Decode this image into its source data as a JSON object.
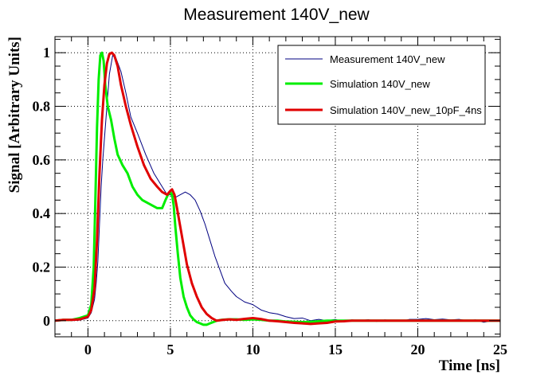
{
  "chart_data": {
    "type": "line",
    "title": "Measurement 140V_new",
    "xlabel": "Time [ns]",
    "ylabel": "Signal [Arbitrary Units]",
    "xlim": [
      -2,
      25
    ],
    "ylim": [
      -0.06,
      1.06
    ],
    "x_ticks": [
      0,
      5,
      10,
      15,
      20,
      25
    ],
    "x_tick_labels": [
      "0",
      "5",
      "10",
      "15",
      "20",
      "25"
    ],
    "y_ticks": [
      0,
      0.2,
      0.4,
      0.6,
      0.8,
      1
    ],
    "y_tick_labels": [
      "0",
      "0.2",
      "0.4",
      "0.6",
      "0.8",
      "1"
    ],
    "grid": true,
    "legend_position": "top-right",
    "series": [
      {
        "name": "Measurement 140V_new",
        "color": "#000080",
        "x": [
          -2,
          -1.5,
          -1,
          -0.5,
          0,
          0.2,
          0.4,
          0.5,
          0.6,
          0.7,
          0.8,
          0.9,
          1.0,
          1.1,
          1.2,
          1.3,
          1.5,
          1.7,
          2.0,
          2.3,
          2.6,
          3.0,
          3.5,
          4.0,
          4.5,
          4.8,
          5.0,
          5.3,
          5.6,
          5.9,
          6.2,
          6.5,
          6.8,
          7.1,
          7.4,
          7.7,
          8.0,
          8.3,
          8.7,
          9.0,
          9.5,
          10.0,
          10.5,
          11.0,
          11.5,
          12.0,
          12.5,
          13.0,
          13.5,
          14.0,
          14.5,
          15.0,
          15.5,
          16.0,
          16.5,
          17.0,
          17.5,
          18.0,
          18.5,
          19.0,
          19.5,
          20.0,
          20.5,
          21.0,
          21.5,
          22.0,
          22.5,
          23.0,
          23.5,
          24.0,
          24.5,
          25.0
        ],
        "y": [
          0.0,
          0.005,
          0.0,
          0.002,
          0.01,
          0.03,
          0.08,
          0.14,
          0.22,
          0.36,
          0.5,
          0.6,
          0.68,
          0.76,
          0.84,
          0.92,
          0.99,
          0.98,
          0.93,
          0.85,
          0.76,
          0.7,
          0.62,
          0.55,
          0.5,
          0.47,
          0.47,
          0.46,
          0.47,
          0.48,
          0.47,
          0.45,
          0.41,
          0.36,
          0.3,
          0.24,
          0.19,
          0.14,
          0.11,
          0.09,
          0.07,
          0.06,
          0.04,
          0.03,
          0.025,
          0.015,
          0.008,
          0.01,
          0.0,
          0.005,
          0.0,
          0.005,
          -0.005,
          0.003,
          0.0,
          0.004,
          -0.003,
          0.003,
          0.0,
          -0.002,
          0.005,
          0.005,
          0.008,
          0.004,
          0.006,
          0.003,
          0.005,
          0.0,
          0.003,
          -0.006,
          0.0,
          0.002
        ]
      },
      {
        "name": "Simulation 140V_new",
        "color": "#00ee00",
        "x": [
          -2,
          -1.5,
          -1,
          -0.5,
          0,
          0.2,
          0.35,
          0.45,
          0.55,
          0.65,
          0.75,
          0.85,
          0.95,
          1.05,
          1.2,
          1.4,
          1.6,
          1.8,
          2.1,
          2.4,
          2.7,
          3.0,
          3.3,
          3.6,
          3.9,
          4.2,
          4.5,
          4.7,
          4.85,
          5.0,
          5.1,
          5.2,
          5.3,
          5.45,
          5.6,
          5.8,
          6.0,
          6.2,
          6.4,
          6.6,
          6.8,
          7.0,
          7.2,
          7.4,
          7.6,
          7.8,
          8.1,
          8.5,
          9.0,
          9.5,
          10.0,
          10.5,
          11.0,
          11.5,
          12.0,
          12.5,
          13.0,
          13.5,
          14.0,
          14.5,
          15.0,
          15.5,
          16.0,
          17.0,
          18.0,
          19.0,
          20.0,
          21.0,
          22.0,
          23.0,
          24.0,
          25.0
        ],
        "y": [
          0.0,
          0.003,
          0.003,
          0.01,
          0.02,
          0.06,
          0.2,
          0.45,
          0.72,
          0.9,
          0.99,
          1.0,
          0.97,
          0.88,
          0.8,
          0.75,
          0.68,
          0.62,
          0.58,
          0.55,
          0.5,
          0.47,
          0.45,
          0.44,
          0.43,
          0.42,
          0.42,
          0.45,
          0.47,
          0.48,
          0.47,
          0.43,
          0.35,
          0.25,
          0.16,
          0.09,
          0.05,
          0.02,
          0.005,
          -0.005,
          -0.01,
          -0.015,
          -0.015,
          -0.01,
          -0.005,
          0.0,
          0.003,
          0.005,
          0.005,
          0.003,
          0.005,
          0.003,
          0.0,
          0.0,
          -0.003,
          -0.004,
          -0.005,
          -0.004,
          -0.002,
          0.0,
          0.0,
          0.0,
          0.0,
          0.0,
          0.0,
          0.0,
          0.0,
          0.0,
          0.0,
          0.0,
          0.0,
          0.0
        ]
      },
      {
        "name": "Simulation 140V_new_10pF_4ns",
        "color": "#e00000",
        "x": [
          -2,
          -1.5,
          -1,
          -0.5,
          0,
          0.2,
          0.4,
          0.55,
          0.7,
          0.85,
          1.0,
          1.15,
          1.3,
          1.45,
          1.6,
          1.8,
          2.0,
          2.3,
          2.6,
          3.0,
          3.4,
          3.8,
          4.2,
          4.5,
          4.8,
          5.0,
          5.1,
          5.25,
          5.4,
          5.6,
          5.8,
          6.0,
          6.3,
          6.6,
          6.9,
          7.2,
          7.5,
          7.8,
          8.2,
          8.6,
          9.0,
          9.5,
          10.0,
          10.5,
          11.0,
          11.5,
          12.0,
          12.5,
          13.0,
          13.5,
          14.0,
          14.5,
          15.0,
          15.5,
          16.0,
          16.5,
          17.0,
          18.0,
          19.0,
          20.0,
          21.0,
          22.0,
          23.0,
          24.0,
          25.0
        ],
        "y": [
          0.0,
          0.003,
          0.003,
          0.005,
          0.015,
          0.04,
          0.12,
          0.3,
          0.55,
          0.75,
          0.88,
          0.96,
          0.995,
          1.0,
          0.99,
          0.95,
          0.88,
          0.8,
          0.73,
          0.65,
          0.58,
          0.53,
          0.5,
          0.48,
          0.47,
          0.485,
          0.49,
          0.47,
          0.42,
          0.35,
          0.28,
          0.21,
          0.14,
          0.09,
          0.05,
          0.025,
          0.01,
          0.0,
          0.003,
          0.005,
          0.003,
          0.007,
          0.01,
          0.006,
          0.0,
          -0.002,
          -0.005,
          -0.008,
          -0.01,
          -0.012,
          -0.01,
          -0.008,
          -0.003,
          -0.002,
          0.0,
          0.0,
          0.0,
          0.0,
          0.0,
          0.0,
          0.0,
          0.0,
          0.0,
          0.0,
          0.0
        ]
      }
    ]
  }
}
